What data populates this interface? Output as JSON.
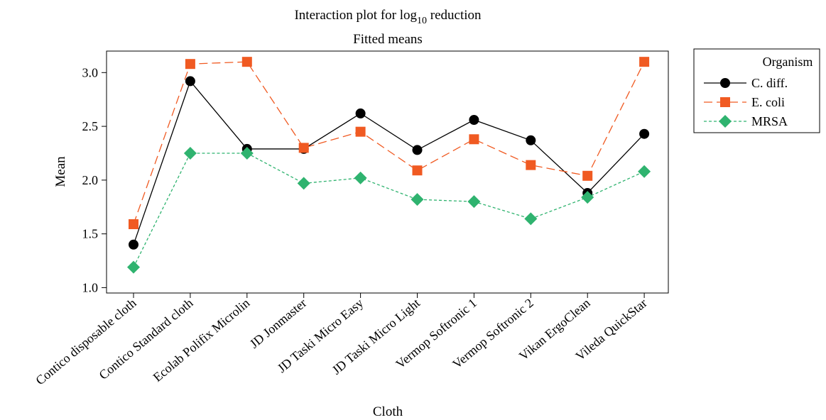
{
  "chart_data": {
    "type": "line",
    "title_main": "Interaction plot for log",
    "title_sub": "10",
    "title_tail": " reduction",
    "subtitle": "Fitted means",
    "xlabel": "Cloth",
    "ylabel": "Mean",
    "ylim": [
      1.0,
      3.2
    ],
    "yticks": [
      "1.0",
      "1.5",
      "2.0",
      "2.5",
      "3.0"
    ],
    "categories": [
      "Contico disposable cloth",
      "Contico Standard cloth",
      "Ecolab Polifix Microlin",
      "JD Jonmaster",
      "JD Taski Micro Easy",
      "JD Taski Micro Light",
      "Vermop Softronic 1",
      "Vermop Softronic 2",
      "Vikan ErgoClean",
      "Vileda QuickStar"
    ],
    "legend_title": "Organism",
    "legend_position": "right",
    "grid": false,
    "series": [
      {
        "name": "C. diff.",
        "color": "#000000",
        "marker": "circle",
        "dash": "solid",
        "values": [
          1.4,
          2.92,
          2.29,
          2.29,
          2.62,
          2.28,
          2.56,
          2.37,
          1.88,
          2.43
        ]
      },
      {
        "name": "E. coli",
        "color": "#f05a22",
        "marker": "square",
        "dash": "long-dash",
        "values": [
          1.59,
          3.08,
          3.1,
          2.3,
          2.45,
          2.09,
          2.38,
          2.14,
          2.04,
          3.1
        ]
      },
      {
        "name": "MRSA",
        "color": "#2fb36f",
        "marker": "diamond",
        "dash": "short-dash",
        "values": [
          1.19,
          2.25,
          2.25,
          1.97,
          2.02,
          1.82,
          1.8,
          1.64,
          1.84,
          2.08
        ]
      }
    ]
  }
}
